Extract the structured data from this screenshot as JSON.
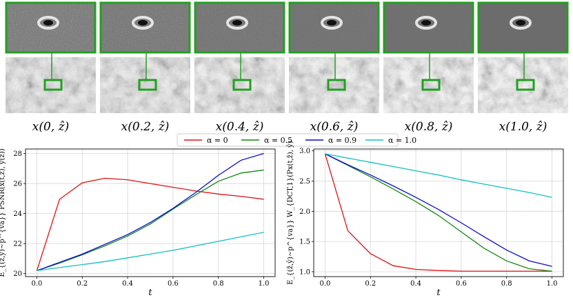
{
  "figure": {
    "panels": [
      {
        "caption": "x(0, ẑ)",
        "alpha": 0.0
      },
      {
        "caption": "x(0.2, ẑ)",
        "alpha": 0.2
      },
      {
        "caption": "x(0.4, ẑ)",
        "alpha": 0.4
      },
      {
        "caption": "x(0.6, ẑ)",
        "alpha": 0.6
      },
      {
        "caption": "x(0.8, ẑ)",
        "alpha": 0.8
      },
      {
        "caption": "x(1.0, ẑ)",
        "alpha": 1.0
      }
    ],
    "colors": {
      "inset_border": "#22a022"
    }
  },
  "legend": {
    "placement": "top-center",
    "entries": [
      {
        "label": "α = 0",
        "color": "#e01010"
      },
      {
        "label": "α = 0.5",
        "color": "#118811"
      },
      {
        "label": "α = 0.9",
        "color": "#0a0ad0"
      },
      {
        "label": "α = 1.0",
        "color": "#10c0c0"
      }
    ]
  },
  "chart_data": [
    {
      "type": "line",
      "title": "",
      "xlabel": "t",
      "ylabel": "E_{(ẑ,ŷ)~p^{va}} PSNR(x(t,ẑ), y(ẑ))",
      "xlim": [
        -0.05,
        1.05
      ],
      "ylim": [
        19.8,
        28.3
      ],
      "xticks": [
        0.0,
        0.2,
        0.4,
        0.6,
        0.8,
        1.0
      ],
      "xtick_labels": [
        "0.0",
        "0.2",
        "0.4",
        "0.6",
        "0.8",
        "1.0"
      ],
      "yticks": [
        20,
        22,
        24,
        26,
        28
      ],
      "ytick_labels": [
        "20",
        "22",
        "24",
        "26",
        "28"
      ],
      "grid": true,
      "x": [
        0.0,
        0.1,
        0.2,
        0.3,
        0.4,
        0.5,
        0.6,
        0.7,
        0.8,
        0.9,
        1.0
      ],
      "series": [
        {
          "name": "α = 0",
          "color": "#e01010",
          "values": [
            20.2,
            24.95,
            26.05,
            26.35,
            26.25,
            26.0,
            25.75,
            25.5,
            25.3,
            25.15,
            24.95
          ]
        },
        {
          "name": "α = 0.5",
          "color": "#118811",
          "values": [
            20.2,
            20.7,
            21.25,
            21.85,
            22.5,
            23.3,
            24.3,
            25.25,
            26.15,
            26.7,
            26.9
          ]
        },
        {
          "name": "α = 0.9",
          "color": "#0a0ad0",
          "values": [
            20.2,
            20.75,
            21.3,
            21.95,
            22.6,
            23.4,
            24.35,
            25.4,
            26.55,
            27.55,
            28.0
          ]
        },
        {
          "name": "α = 1.0",
          "color": "#10c0c0",
          "values": [
            20.2,
            20.4,
            20.6,
            20.8,
            21.05,
            21.3,
            21.55,
            21.85,
            22.15,
            22.45,
            22.75
          ]
        }
      ]
    },
    {
      "type": "line",
      "title": "",
      "xlabel": "t",
      "ylabel": "E_{(ẑ,ŷ)~p^{va}} W_{DCT,1}(Px(t,ẑ), ŷ)",
      "xlim": [
        -0.05,
        1.05
      ],
      "ylim": [
        0.92,
        3.03
      ],
      "xticks": [
        0.0,
        0.2,
        0.4,
        0.6,
        0.8,
        1.0
      ],
      "xtick_labels": [
        "0.0",
        "0.2",
        "0.4",
        "0.6",
        "0.8",
        "1.0"
      ],
      "yticks": [
        1.0,
        1.5,
        2.0,
        2.5,
        3.0
      ],
      "ytick_labels": [
        "1.0",
        "1.5",
        "2.0",
        "2.5",
        "3.0"
      ],
      "grid": true,
      "x": [
        0.0,
        0.1,
        0.2,
        0.3,
        0.4,
        0.5,
        0.6,
        0.7,
        0.8,
        0.9,
        1.0
      ],
      "series": [
        {
          "name": "α = 0",
          "color": "#e01010",
          "values": [
            2.95,
            1.68,
            1.3,
            1.1,
            1.04,
            1.02,
            1.01,
            1.01,
            1.01,
            1.01,
            1.01
          ]
        },
        {
          "name": "α = 0.5",
          "color": "#118811",
          "values": [
            2.95,
            2.76,
            2.57,
            2.37,
            2.16,
            1.93,
            1.66,
            1.39,
            1.18,
            1.05,
            1.01
          ]
        },
        {
          "name": "α = 0.9",
          "color": "#0a0ad0",
          "values": [
            2.95,
            2.77,
            2.6,
            2.42,
            2.23,
            2.03,
            1.81,
            1.58,
            1.36,
            1.18,
            1.09
          ]
        },
        {
          "name": "α = 1.0",
          "color": "#10c0c0",
          "values": [
            2.95,
            2.88,
            2.81,
            2.74,
            2.67,
            2.6,
            2.52,
            2.45,
            2.38,
            2.31,
            2.23
          ]
        }
      ]
    }
  ]
}
